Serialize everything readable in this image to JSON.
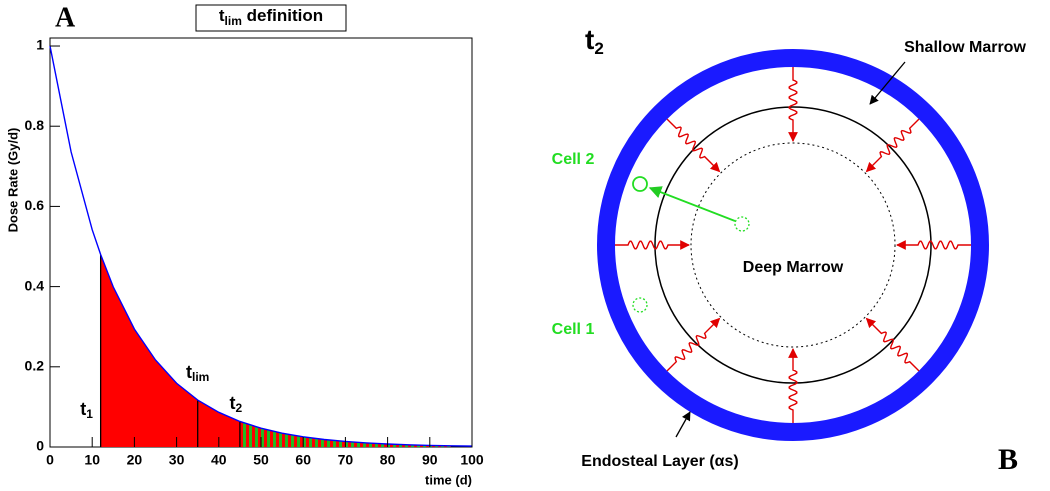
{
  "chart_data": {
    "type": "line",
    "panel": "A",
    "title": {
      "base": "t",
      "sub": "lim",
      "rest": " definition"
    },
    "x_label": "time (d)",
    "y_label": "Dose Rate (Gy/d)",
    "color": "#0000ff",
    "x": [
      0,
      5,
      10,
      12,
      15,
      20,
      25,
      30,
      35,
      40,
      45,
      50,
      55,
      60,
      65,
      70,
      75,
      80,
      85,
      90,
      95,
      100
    ],
    "values": [
      1.0,
      0.736,
      0.542,
      0.48,
      0.399,
      0.294,
      0.217,
      0.159,
      0.117,
      0.0865,
      0.0637,
      0.0469,
      0.0345,
      0.0254,
      0.0187,
      0.0138,
      0.0101,
      0.0075,
      0.0055,
      0.004,
      0.003,
      0.0022
    ],
    "xlim": [
      0,
      100
    ],
    "ylim": [
      0,
      1.02
    ],
    "xticks": [
      0,
      10,
      20,
      30,
      40,
      50,
      60,
      70,
      80,
      90,
      100
    ],
    "yticks": [
      0,
      0.2,
      0.4,
      0.6,
      0.8,
      1
    ],
    "markers": [
      {
        "base": "t",
        "sub": "1",
        "x": 12
      },
      {
        "base": "t",
        "sub": "lim",
        "x": 35
      },
      {
        "base": "t",
        "sub": "2",
        "x": 45
      }
    ],
    "regions": [
      {
        "from": 12,
        "to": 45,
        "color": "#ff0000"
      },
      {
        "from": 45,
        "to": 95,
        "color": "#ff0000",
        "color2": "#22bb22"
      }
    ]
  },
  "diagram": {
    "panel": "B",
    "time": {
      "base": "t",
      "sub": "2"
    },
    "labels": {
      "shallow": "Shallow Marrow",
      "deep": "Deep Marrow",
      "cell2": "Cell 2",
      "cell1": "Cell 1",
      "endosteal": "Endosteal Layer (αs)"
    }
  }
}
